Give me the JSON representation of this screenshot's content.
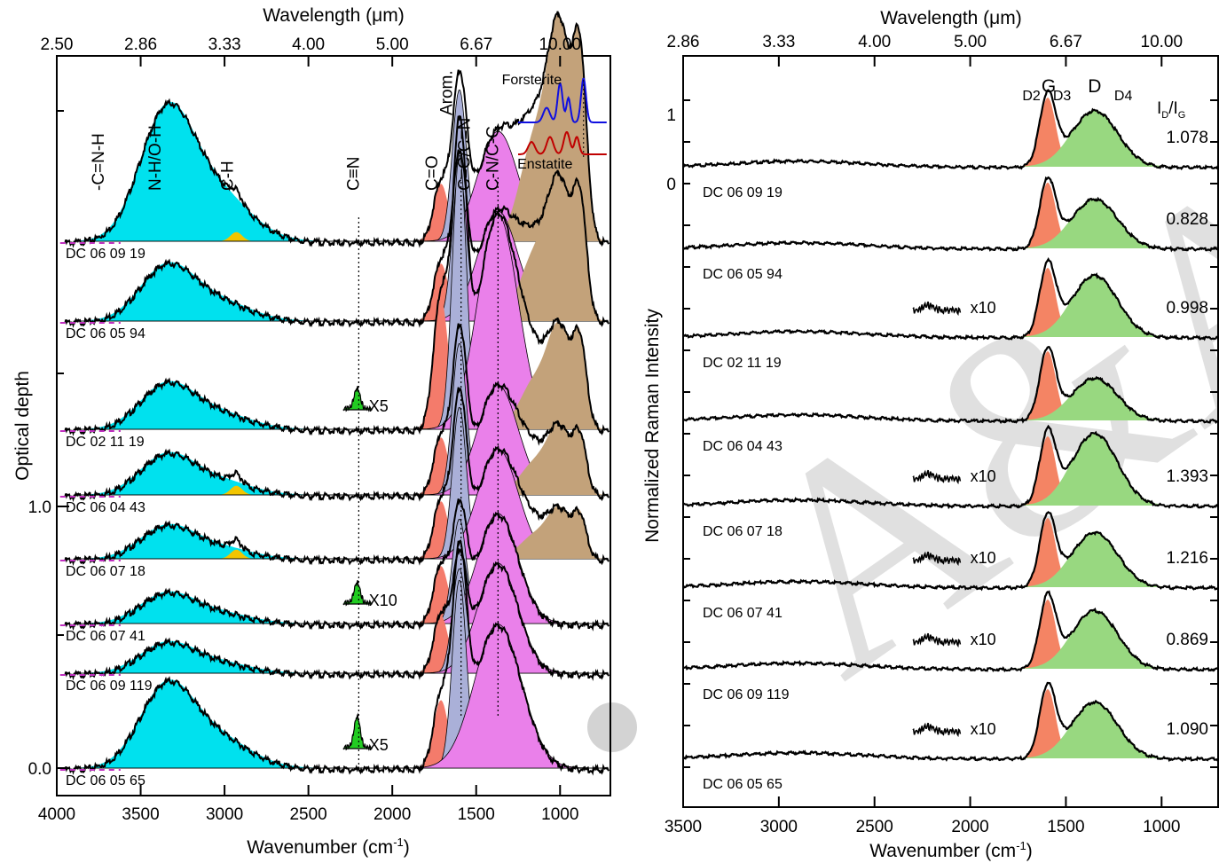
{
  "colors": {
    "nh_oh": "#00e1ee",
    "ch": "#f2c500",
    "cn_triple": "#22cc22",
    "c_o": "#f47b6b",
    "arom": "#aab0d8",
    "cn_cc": "#ea80ea",
    "silicate": "#c3a27a",
    "forsterite": "#1010e0",
    "enstatite": "#c00000",
    "raman_d2": "#f48464",
    "raman_d": "#98d880",
    "watermark": "#c0c0c0"
  },
  "chart_data": [
    {
      "type": "area",
      "panel": "infrared",
      "xlabel": "Wavenumber (cm",
      "xlabel_sup": "-1",
      "xlabel_end": ")",
      "ylabel": "Optical depth",
      "top_axis_label": "Wavelength (",
      "top_axis_mu": "μ",
      "top_axis_end": "m)",
      "xlim": [
        4000,
        700
      ],
      "x_ticks": [
        "4000",
        "3500",
        "3000",
        "2500",
        "2000",
        "1500",
        "1000"
      ],
      "x_tick_values": [
        4000,
        3500,
        3000,
        2500,
        2000,
        1500,
        1000
      ],
      "top_ticks": [
        "2.50",
        "2.86",
        "3.33",
        "4.00",
        "5.00",
        "6.67",
        "10.00"
      ],
      "top_tick_values": [
        4000,
        3500,
        3000,
        2500,
        2000,
        1500,
        1000
      ],
      "y_ticks": [
        "0.0",
        "1.0"
      ],
      "y_tick_values": [
        0.0,
        1.0
      ],
      "band_labels": [
        "-C=N-H",
        "N-H/O-H",
        "C-H",
        "C≡N",
        "C=O",
        "Arom.",
        "C=C/C=N",
        "C-N/C-C"
      ],
      "band_positions": [
        3720,
        3380,
        2950,
        2200,
        1730,
        1590,
        1590,
        1370
      ],
      "reference_labels": [
        "Forsterite",
        "Enstatite"
      ],
      "samples": [
        {
          "name": "DC 06 09 19",
          "scale_label": "",
          "silicate": 0.95,
          "nh": 0.52,
          "cn": 0
        },
        {
          "name": "DC 06 05 94",
          "scale_label": "",
          "silicate": 0.62,
          "nh": 0.22,
          "cn": 0
        },
        {
          "name": "DC 02 11 19",
          "scale_label": "X5",
          "silicate": 0.45,
          "nh": 0.18,
          "cn": 0.08
        },
        {
          "name": "DC 06 04 43",
          "scale_label": "",
          "silicate": 0.3,
          "nh": 0.16,
          "cn": 0
        },
        {
          "name": "DC 06 07 18",
          "scale_label": "",
          "silicate": 0.22,
          "nh": 0.13,
          "cn": 0
        },
        {
          "name": "DC 06 07 41",
          "scale_label": "X10",
          "silicate": 0,
          "nh": 0.12,
          "cn": 0.08
        },
        {
          "name": "DC 06 09 119",
          "scale_label": "",
          "silicate": 0,
          "nh": 0.12,
          "cn": 0
        },
        {
          "name": "DC 06 05 65",
          "scale_label": "X5",
          "silicate": 0,
          "nh": 0.33,
          "cn": 0.12
        }
      ]
    },
    {
      "type": "area",
      "panel": "raman",
      "xlabel": "Wavenumber (cm",
      "xlabel_sup": "-1",
      "xlabel_end": ")",
      "ylabel": "Normalized Raman Intensity",
      "top_axis_label": "Wavelength (",
      "top_axis_mu": "μ",
      "top_axis_end": "m)",
      "xlim": [
        3500,
        700
      ],
      "x_ticks": [
        "3500",
        "3000",
        "2500",
        "2000",
        "1500",
        "1000"
      ],
      "x_tick_values": [
        3500,
        3000,
        2500,
        2000,
        1500,
        1000
      ],
      "top_ticks": [
        "2.86",
        "3.33",
        "4.00",
        "5.00",
        "6.67",
        "10.00"
      ],
      "top_tick_values": [
        3500,
        3000,
        2500,
        2000,
        1500,
        1000
      ],
      "y_ticks": [
        "0",
        "1"
      ],
      "y_tick_values": [
        0,
        1
      ],
      "peak_labels": {
        "g": "G",
        "d": "D",
        "d2": "D2",
        "d3": "D3",
        "d4": "D4",
        "ratio_i": "I",
        "ratio_sub_d": "D",
        "ratio_slash": "/I",
        "ratio_sub_g": "G"
      },
      "samples": [
        {
          "name": "DC 06 09 19",
          "ratio": "1.078",
          "scale_label": ""
        },
        {
          "name": "DC 06 05 94",
          "ratio": "0.828",
          "scale_label": ""
        },
        {
          "name": "DC 02 11 19",
          "ratio": "0.998",
          "scale_label": "x10"
        },
        {
          "name": "DC 06 04 43",
          "ratio": "",
          "scale_label": ""
        },
        {
          "name": "DC 06 07 18",
          "ratio": "1.393",
          "scale_label": "x10"
        },
        {
          "name": "DC 06 07 41",
          "ratio": "1.216",
          "scale_label": "x10"
        },
        {
          "name": "DC 06 09 119",
          "ratio": "0.869",
          "scale_label": "x10"
        },
        {
          "name": "DC 06 05 65",
          "ratio": "1.090",
          "scale_label": "x10"
        }
      ]
    }
  ],
  "watermark": "A&A"
}
